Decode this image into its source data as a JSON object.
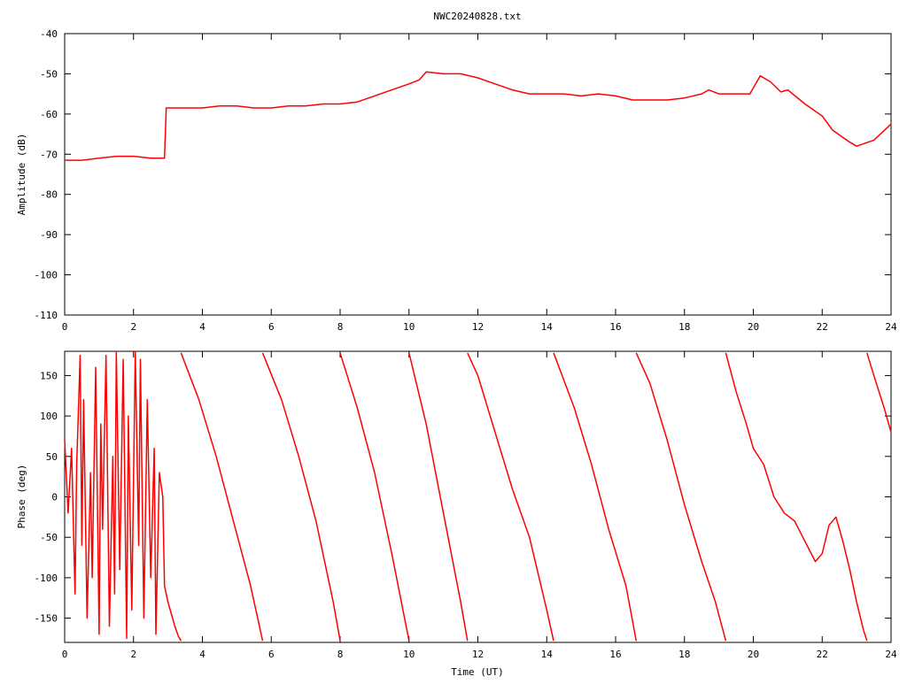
{
  "chart_data": [
    {
      "type": "line",
      "title": "NWC20240828.txt",
      "xlabel": "",
      "ylabel": "Amplitude (dB)",
      "xlim": [
        0,
        24
      ],
      "ylim": [
        -110,
        -40
      ],
      "x_ticks": [
        "0",
        "2",
        "4",
        "6",
        "8",
        "10",
        "12",
        "14",
        "16",
        "18",
        "20",
        "22",
        "24"
      ],
      "y_ticks": [
        "-40",
        "-50",
        "-60",
        "-70",
        "-80",
        "-90",
        "-100",
        "-110"
      ],
      "grid": false,
      "color": "#ff0000",
      "series": [
        {
          "x": [
            0,
            0.5,
            1,
            1.5,
            2,
            2.5,
            2.9,
            2.95,
            3.5,
            4,
            4.5,
            5,
            5.5,
            6,
            6.5,
            7,
            7.5,
            8,
            8.5,
            9,
            9.5,
            10,
            10.3,
            10.5,
            11,
            11.5,
            12,
            12.5,
            13,
            13.5,
            14,
            14.5,
            15,
            15.5,
            16,
            16.5,
            17,
            17.5,
            18,
            18.5,
            18.7,
            19,
            19.5,
            19.9,
            20.2,
            20.5,
            20.8,
            21,
            21.5,
            22,
            22.3,
            22.8,
            23,
            23.5,
            24
          ],
          "y": [
            -71.5,
            -71.5,
            -71,
            -70.5,
            -70.5,
            -71,
            -71,
            -58.5,
            -58.5,
            -58.5,
            -58,
            -58,
            -58.5,
            -58.5,
            -58,
            -58,
            -57.5,
            -57.5,
            -57,
            -55.5,
            -54,
            -52.5,
            -51.5,
            -49.5,
            -50,
            -50,
            -51,
            -52.5,
            -54,
            -55,
            -55,
            -55,
            -55.5,
            -55,
            -55.5,
            -56.5,
            -56.5,
            -56.5,
            -56,
            -55,
            -54,
            -55,
            -55,
            -55,
            -50.5,
            -52,
            -54.5,
            -54,
            -57.5,
            -60.5,
            -64,
            -67,
            -68,
            -66.5,
            -62.5
          ]
        }
      ]
    },
    {
      "type": "line",
      "title": "",
      "xlabel": "Time (UT)",
      "ylabel": "Phase (deg)",
      "xlim": [
        0,
        24
      ],
      "ylim": [
        -180,
        180
      ],
      "x_ticks": [
        "0",
        "2",
        "4",
        "6",
        "8",
        "10",
        "12",
        "14",
        "16",
        "18",
        "20",
        "22",
        "24"
      ],
      "y_ticks": [
        "150",
        "100",
        "50",
        "0",
        "-50",
        "-100",
        "-150"
      ],
      "grid": false,
      "color": "#ff0000",
      "series": [
        {
          "x": [
            0,
            0.1,
            0.2,
            0.3,
            0.35,
            0.45,
            0.5,
            0.55,
            0.65,
            0.75,
            0.8,
            0.9,
            1.0,
            1.05,
            1.1,
            1.2,
            1.3,
            1.4,
            1.45,
            1.5,
            1.6,
            1.7,
            1.8,
            1.85,
            1.95,
            2.05,
            2.15,
            2.2,
            2.3,
            2.4,
            2.5,
            2.6,
            2.65,
            2.75,
            2.85,
            2.9,
            3.0,
            3.1,
            3.2,
            3.3,
            3.38
          ],
          "y": [
            70,
            -20,
            60,
            -120,
            40,
            175,
            -60,
            120,
            -150,
            30,
            -100,
            160,
            -170,
            90,
            -40,
            175,
            -160,
            50,
            -120,
            180,
            -90,
            170,
            -175,
            100,
            -140,
            180,
            -60,
            170,
            -150,
            120,
            -100,
            60,
            -170,
            30,
            0,
            -110,
            -130,
            -145,
            -160,
            -172,
            -178
          ]
        },
        {
          "x": [
            3.38,
            3.9,
            4.4,
            4.9,
            5.4,
            5.75
          ],
          "y": [
            178,
            120,
            50,
            -30,
            -110,
            -178
          ]
        },
        {
          "x": [
            5.75,
            6.3,
            6.8,
            7.3,
            7.8,
            8.0
          ],
          "y": [
            178,
            120,
            50,
            -30,
            -130,
            -178
          ]
        },
        {
          "x": [
            8.0,
            8.5,
            9.0,
            9.5,
            10.0
          ],
          "y": [
            178,
            110,
            30,
            -70,
            -178
          ]
        },
        {
          "x": [
            10.0,
            10.5,
            11.0,
            11.5,
            11.7
          ],
          "y": [
            178,
            90,
            -20,
            -130,
            -178
          ]
        },
        {
          "x": [
            11.7,
            12.0,
            12.5,
            13.0,
            13.5,
            14.0,
            14.2
          ],
          "y": [
            178,
            150,
            80,
            10,
            -50,
            -140,
            -178
          ]
        },
        {
          "x": [
            14.2,
            14.8,
            15.3,
            15.8,
            16.3,
            16.6
          ],
          "y": [
            178,
            110,
            40,
            -40,
            -110,
            -178
          ]
        },
        {
          "x": [
            16.6,
            17.0,
            17.5,
            18.0,
            18.5,
            18.9,
            19.2
          ],
          "y": [
            178,
            140,
            70,
            -10,
            -80,
            -130,
            -178
          ]
        },
        {
          "x": [
            19.2,
            19.5,
            19.8,
            20.0,
            20.3,
            20.6,
            20.9,
            21.2,
            21.5,
            21.8,
            22.0,
            22.2,
            22.4,
            22.6,
            22.8,
            23.0,
            23.2,
            23.3
          ],
          "y": [
            178,
            130,
            90,
            60,
            40,
            0,
            -20,
            -30,
            -55,
            -80,
            -70,
            -35,
            -25,
            -55,
            -90,
            -130,
            -165,
            -178
          ]
        },
        {
          "x": [
            23.3,
            23.5,
            23.8,
            24.0
          ],
          "y": [
            178,
            150,
            110,
            80
          ]
        }
      ]
    }
  ]
}
